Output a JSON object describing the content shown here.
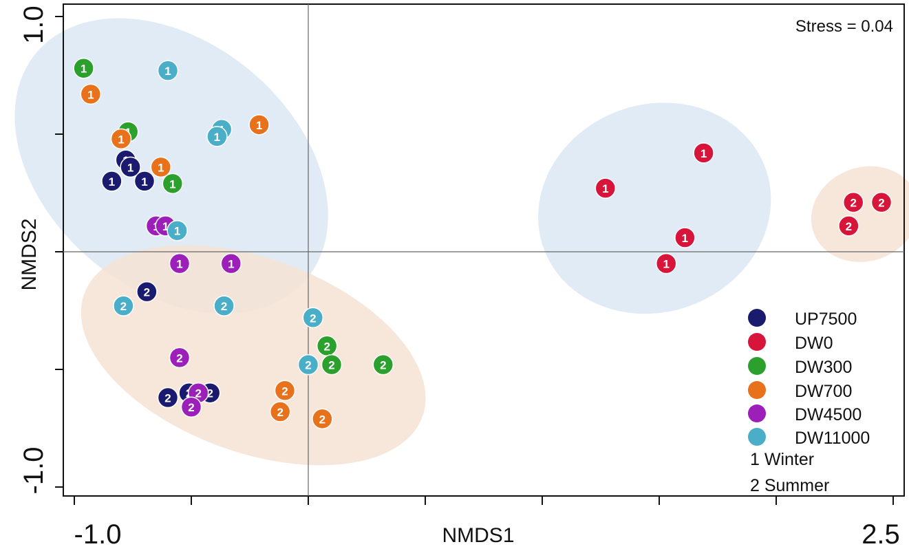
{
  "chart_data": {
    "type": "scatter",
    "title": "",
    "xlabel": "NMDS1",
    "ylabel": "NMDS2",
    "xlim": [
      -1.0,
      2.5
    ],
    "ylim": [
      -1.0,
      1.0
    ],
    "x_tick_labels": [
      "-1.0",
      "2.5"
    ],
    "y_tick_labels": [
      "1.0",
      "-1.0"
    ],
    "grid": false,
    "reference_lines": {
      "x": 0.0,
      "y": 0.0
    },
    "annotation": "Stress = 0.04",
    "legend_position": "bottom-right",
    "legend": [
      {
        "name": "UP7500",
        "color": "#1a1a6e"
      },
      {
        "name": "DW0",
        "color": "#d7153a"
      },
      {
        "name": "DW300",
        "color": "#2ca02c"
      },
      {
        "name": "DW700",
        "color": "#e8711b"
      },
      {
        "name": "DW4500",
        "color": "#9b1fb8"
      },
      {
        "name": "DW11000",
        "color": "#4aaec9"
      }
    ],
    "season_legend": [
      "1 Winter",
      "2 Summer"
    ],
    "ellipse_colors": {
      "1": "#dce7f3",
      "2": "#f6e3d5"
    },
    "series": [
      {
        "name": "UP7500",
        "color": "#1a1a6e",
        "points": [
          {
            "x": -0.78,
            "y": 0.39,
            "s": "1"
          },
          {
            "x": -0.76,
            "y": 0.36,
            "s": "1"
          },
          {
            "x": -0.84,
            "y": 0.3,
            "s": "1"
          },
          {
            "x": -0.7,
            "y": 0.3,
            "s": "1"
          },
          {
            "x": -0.69,
            "y": -0.17,
            "s": "2"
          },
          {
            "x": -0.51,
            "y": -0.6,
            "s": "2"
          },
          {
            "x": -0.6,
            "y": -0.62,
            "s": "2"
          },
          {
            "x": -0.42,
            "y": -0.6,
            "s": "2"
          }
        ]
      },
      {
        "name": "DW0",
        "color": "#d7153a",
        "points": [
          {
            "x": 1.69,
            "y": 0.42,
            "s": "1"
          },
          {
            "x": 1.27,
            "y": 0.27,
            "s": "1"
          },
          {
            "x": 1.61,
            "y": 0.06,
            "s": "1"
          },
          {
            "x": 1.53,
            "y": -0.05,
            "s": "1"
          },
          {
            "x": 2.33,
            "y": 0.21,
            "s": "2"
          },
          {
            "x": 2.45,
            "y": 0.21,
            "s": "2"
          },
          {
            "x": 2.31,
            "y": 0.11,
            "s": "2"
          }
        ]
      },
      {
        "name": "DW300",
        "color": "#2ca02c",
        "points": [
          {
            "x": -0.96,
            "y": 0.78,
            "s": "1"
          },
          {
            "x": -0.77,
            "y": 0.51,
            "s": "1"
          },
          {
            "x": -0.58,
            "y": 0.29,
            "s": "1"
          },
          {
            "x": 0.08,
            "y": -0.4,
            "s": "2"
          },
          {
            "x": 0.1,
            "y": -0.48,
            "s": "2"
          },
          {
            "x": 0.32,
            "y": -0.48,
            "s": "2"
          }
        ]
      },
      {
        "name": "DW700",
        "color": "#e8711b",
        "points": [
          {
            "x": -0.93,
            "y": 0.67,
            "s": "1"
          },
          {
            "x": -0.8,
            "y": 0.48,
            "s": "1"
          },
          {
            "x": -0.63,
            "y": 0.36,
            "s": "1"
          },
          {
            "x": -0.21,
            "y": 0.54,
            "s": "1"
          },
          {
            "x": -0.1,
            "y": -0.59,
            "s": "2"
          },
          {
            "x": -0.12,
            "y": -0.68,
            "s": "2"
          },
          {
            "x": 0.06,
            "y": -0.71,
            "s": "2"
          }
        ]
      },
      {
        "name": "DW4500",
        "color": "#9b1fb8",
        "points": [
          {
            "x": -0.65,
            "y": 0.11,
            "s": "1"
          },
          {
            "x": -0.61,
            "y": 0.11,
            "s": "1"
          },
          {
            "x": -0.55,
            "y": -0.05,
            "s": "1"
          },
          {
            "x": -0.33,
            "y": -0.05,
            "s": "1"
          },
          {
            "x": -0.55,
            "y": -0.45,
            "s": "2"
          },
          {
            "x": -0.47,
            "y": -0.6,
            "s": "2"
          },
          {
            "x": -0.5,
            "y": -0.66,
            "s": "2"
          }
        ]
      },
      {
        "name": "DW11000",
        "color": "#4aaec9",
        "points": [
          {
            "x": -0.6,
            "y": 0.77,
            "s": "1"
          },
          {
            "x": -0.37,
            "y": 0.52,
            "s": "1"
          },
          {
            "x": -0.39,
            "y": 0.49,
            "s": "1"
          },
          {
            "x": -0.56,
            "y": 0.09,
            "s": "1"
          },
          {
            "x": -0.79,
            "y": -0.23,
            "s": "2"
          },
          {
            "x": -0.36,
            "y": -0.23,
            "s": "2"
          },
          {
            "x": 0.02,
            "y": -0.28,
            "s": "2"
          },
          {
            "x": 0.0,
            "y": -0.48,
            "s": "2"
          }
        ]
      }
    ]
  }
}
